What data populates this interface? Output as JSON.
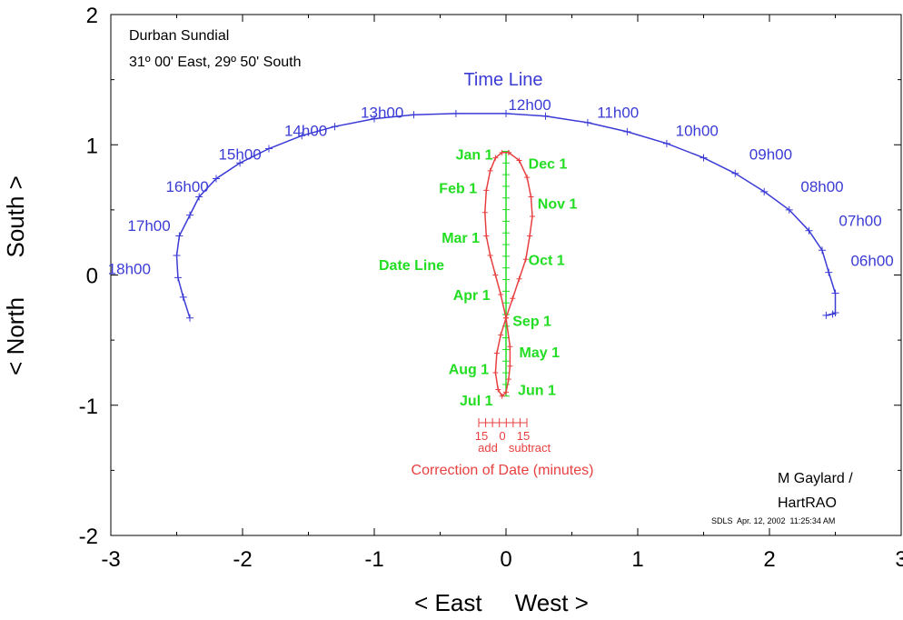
{
  "chart_data": {
    "type": "line",
    "title": "Durban Sundial",
    "subtitle": "31º 00' East, 29º 50' South",
    "xlabel": "< East     West >",
    "ylabel": "< North      South >",
    "xlim": [
      -3,
      3
    ],
    "ylim": [
      -2,
      2
    ],
    "x_ticks": [
      "-3",
      "-2",
      "-1",
      "0",
      "1",
      "2",
      "3"
    ],
    "y_ticks": [
      "2",
      "1",
      "0",
      "-1",
      "-2"
    ],
    "grid": false,
    "colors": {
      "time_line": "#3b3bd6",
      "date_line": "#22dd22",
      "analemma": "#e84040"
    },
    "series": [
      {
        "name": "Time Line",
        "x": [
          -2.4,
          -2.45,
          -2.49,
          -2.5,
          -2.48,
          -2.4,
          -2.33,
          -2.2,
          -2.02,
          -1.8,
          -1.55,
          -1.3,
          -1.0,
          -0.7,
          -0.38,
          0.0,
          0.3,
          0.62,
          0.92,
          1.22,
          1.5,
          1.74,
          1.96,
          2.15,
          2.3,
          2.4,
          2.45,
          2.5,
          2.5,
          2.48,
          2.43
        ],
        "y": [
          -0.33,
          -0.17,
          -0.02,
          0.15,
          0.3,
          0.46,
          0.6,
          0.74,
          0.86,
          0.97,
          1.07,
          1.14,
          1.2,
          1.23,
          1.24,
          1.24,
          1.22,
          1.17,
          1.1,
          1.01,
          0.9,
          0.78,
          0.64,
          0.5,
          0.34,
          0.19,
          0.02,
          -0.14,
          -0.29,
          -0.3,
          -0.31
        ]
      },
      {
        "name": "Date Line",
        "x": [
          0,
          0
        ],
        "y": [
          -0.93,
          0.95
        ]
      },
      {
        "name": "Analemma",
        "x": [
          0.02,
          0.1,
          0.16,
          0.19,
          0.2,
          0.18,
          0.15,
          0.1,
          0.05,
          0.0,
          -0.04,
          -0.07,
          -0.08,
          -0.06,
          -0.03,
          0.0,
          0.02,
          0.03,
          0.03,
          0.0,
          -0.04,
          -0.08,
          -0.12,
          -0.15,
          -0.16,
          -0.15,
          -0.12,
          -0.08,
          -0.03,
          0.02
        ],
        "y": [
          0.94,
          0.88,
          0.75,
          0.6,
          0.45,
          0.3,
          0.12,
          -0.03,
          -0.18,
          -0.33,
          -0.46,
          -0.6,
          -0.75,
          -0.88,
          -0.93,
          -0.9,
          -0.8,
          -0.7,
          -0.55,
          -0.33,
          -0.15,
          0.0,
          0.15,
          0.3,
          0.48,
          0.65,
          0.8,
          0.9,
          0.94,
          0.94
        ]
      }
    ],
    "time_labels": [
      {
        "text": "12h00",
        "x": 0.18,
        "y": 1.31
      },
      {
        "text": "13h00",
        "x": -0.94,
        "y": 1.25
      },
      {
        "text": "14h00",
        "x": -1.52,
        "y": 1.11
      },
      {
        "text": "15h00",
        "x": -2.02,
        "y": 0.93
      },
      {
        "text": "16h00",
        "x": -2.42,
        "y": 0.68
      },
      {
        "text": "17h00",
        "x": -2.71,
        "y": 0.38
      },
      {
        "text": "18h00",
        "x": -2.86,
        "y": 0.05
      },
      {
        "text": "11h00",
        "x": 0.85,
        "y": 1.25
      },
      {
        "text": "10h00",
        "x": 1.45,
        "y": 1.11
      },
      {
        "text": "09h00",
        "x": 2.01,
        "y": 0.93
      },
      {
        "text": "08h00",
        "x": 2.4,
        "y": 0.68
      },
      {
        "text": "07h00",
        "x": 2.69,
        "y": 0.42
      },
      {
        "text": "06h00",
        "x": 2.78,
        "y": 0.11
      }
    ],
    "date_labels": [
      {
        "text": "Jan 1",
        "x": -0.1,
        "y": 0.93,
        "anchor": "end"
      },
      {
        "text": "Feb 1",
        "x": -0.22,
        "y": 0.67,
        "anchor": "end"
      },
      {
        "text": "Mar 1",
        "x": -0.2,
        "y": 0.29,
        "anchor": "end"
      },
      {
        "text": "Apr 1",
        "x": -0.12,
        "y": -0.15,
        "anchor": "end"
      },
      {
        "text": "Aug 1",
        "x": -0.13,
        "y": -0.72,
        "anchor": "end"
      },
      {
        "text": "Jul 1",
        "x": -0.1,
        "y": -0.96,
        "anchor": "end"
      },
      {
        "text": "Dec 1",
        "x": 0.17,
        "y": 0.86,
        "anchor": "start"
      },
      {
        "text": "Nov 1",
        "x": 0.24,
        "y": 0.55,
        "anchor": "start"
      },
      {
        "text": "Oct 1",
        "x": 0.17,
        "y": 0.12,
        "anchor": "start"
      },
      {
        "text": "Sep 1",
        "x": 0.05,
        "y": -0.35,
        "anchor": "start"
      },
      {
        "text": "May 1",
        "x": 0.1,
        "y": -0.59,
        "anchor": "start"
      },
      {
        "text": "Jun 1",
        "x": 0.09,
        "y": -0.88,
        "anchor": "start"
      }
    ],
    "annotations": {
      "time_line_title": "Time Line",
      "date_line_title": "Date Line",
      "correction_ticks": [
        "15",
        "0",
        "15"
      ],
      "correction_add": "add",
      "correction_subtract": "subtract",
      "correction_title": "Correction of Date (minutes)",
      "author_line1": "M Gaylard /",
      "author_line2": "HartRAO",
      "footer_stamp": "SDLS  Apr. 12, 2002  11:25:34 AM"
    }
  }
}
